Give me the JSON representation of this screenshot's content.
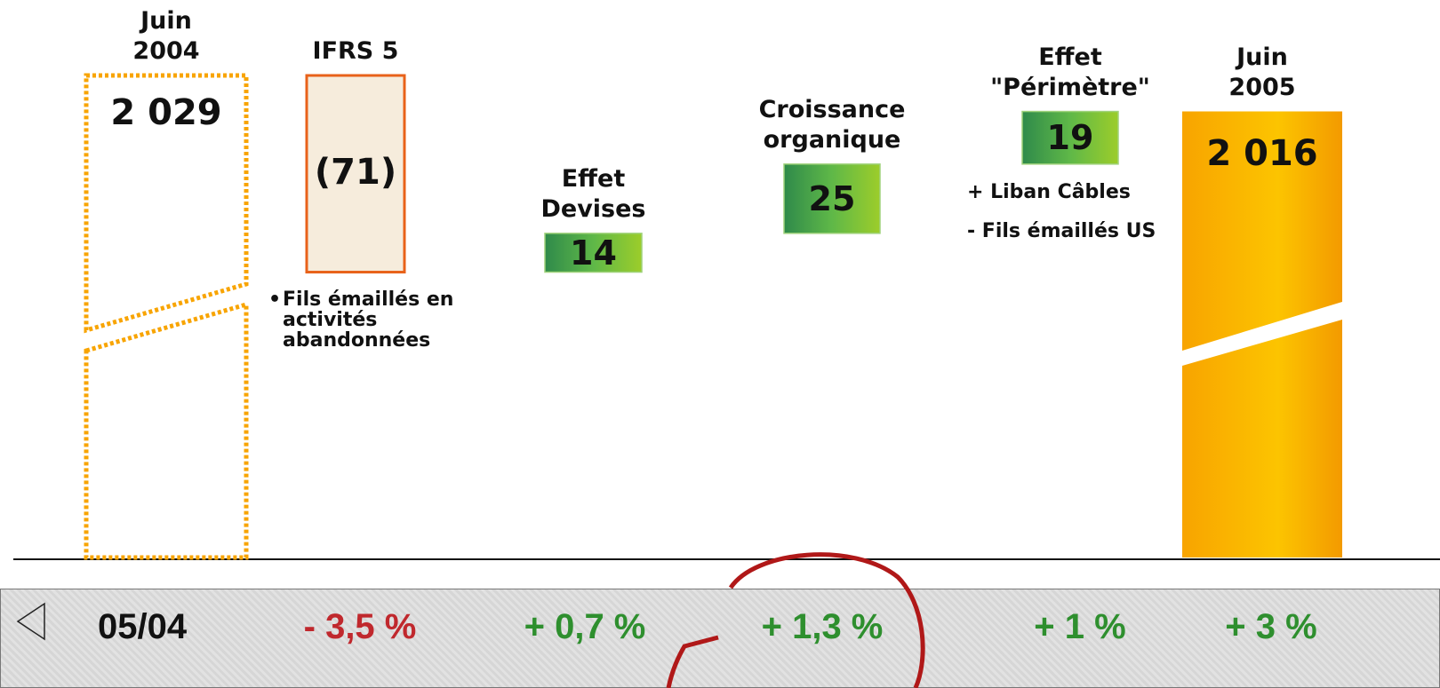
{
  "chart_data": {
    "type": "waterfall",
    "categories": [
      "Juin 2004",
      "IFRS 5",
      "Effet Devises",
      "Croissance organique",
      "Effet \"Périmètre\"",
      "Juin 2005"
    ],
    "values": [
      2029,
      -71,
      14,
      25,
      19,
      2016
    ],
    "value_labels": [
      "2 029",
      "(71)",
      "14",
      "25",
      "19",
      "2 016"
    ],
    "notes": [
      [],
      [
        "Fils émaillés en activités abandonnées"
      ],
      [],
      [],
      [
        "+ Liban Câbles",
        "- Fils émaillés US"
      ],
      []
    ],
    "colors": {
      "total": "#f8a400",
      "decrease": "#f6ecdc",
      "increase": "#5fb848"
    },
    "growth": {
      "label": "05/04",
      "values": [
        "- 3,5 %",
        "+ 0,7 %",
        "+ 1,3 %",
        "+ 1 %",
        "+ 3 %"
      ],
      "colors": [
        "#c0282d",
        "#2e8f2e",
        "#2e8f2e",
        "#2e8f2e",
        "#2e8f2e"
      ]
    }
  }
}
